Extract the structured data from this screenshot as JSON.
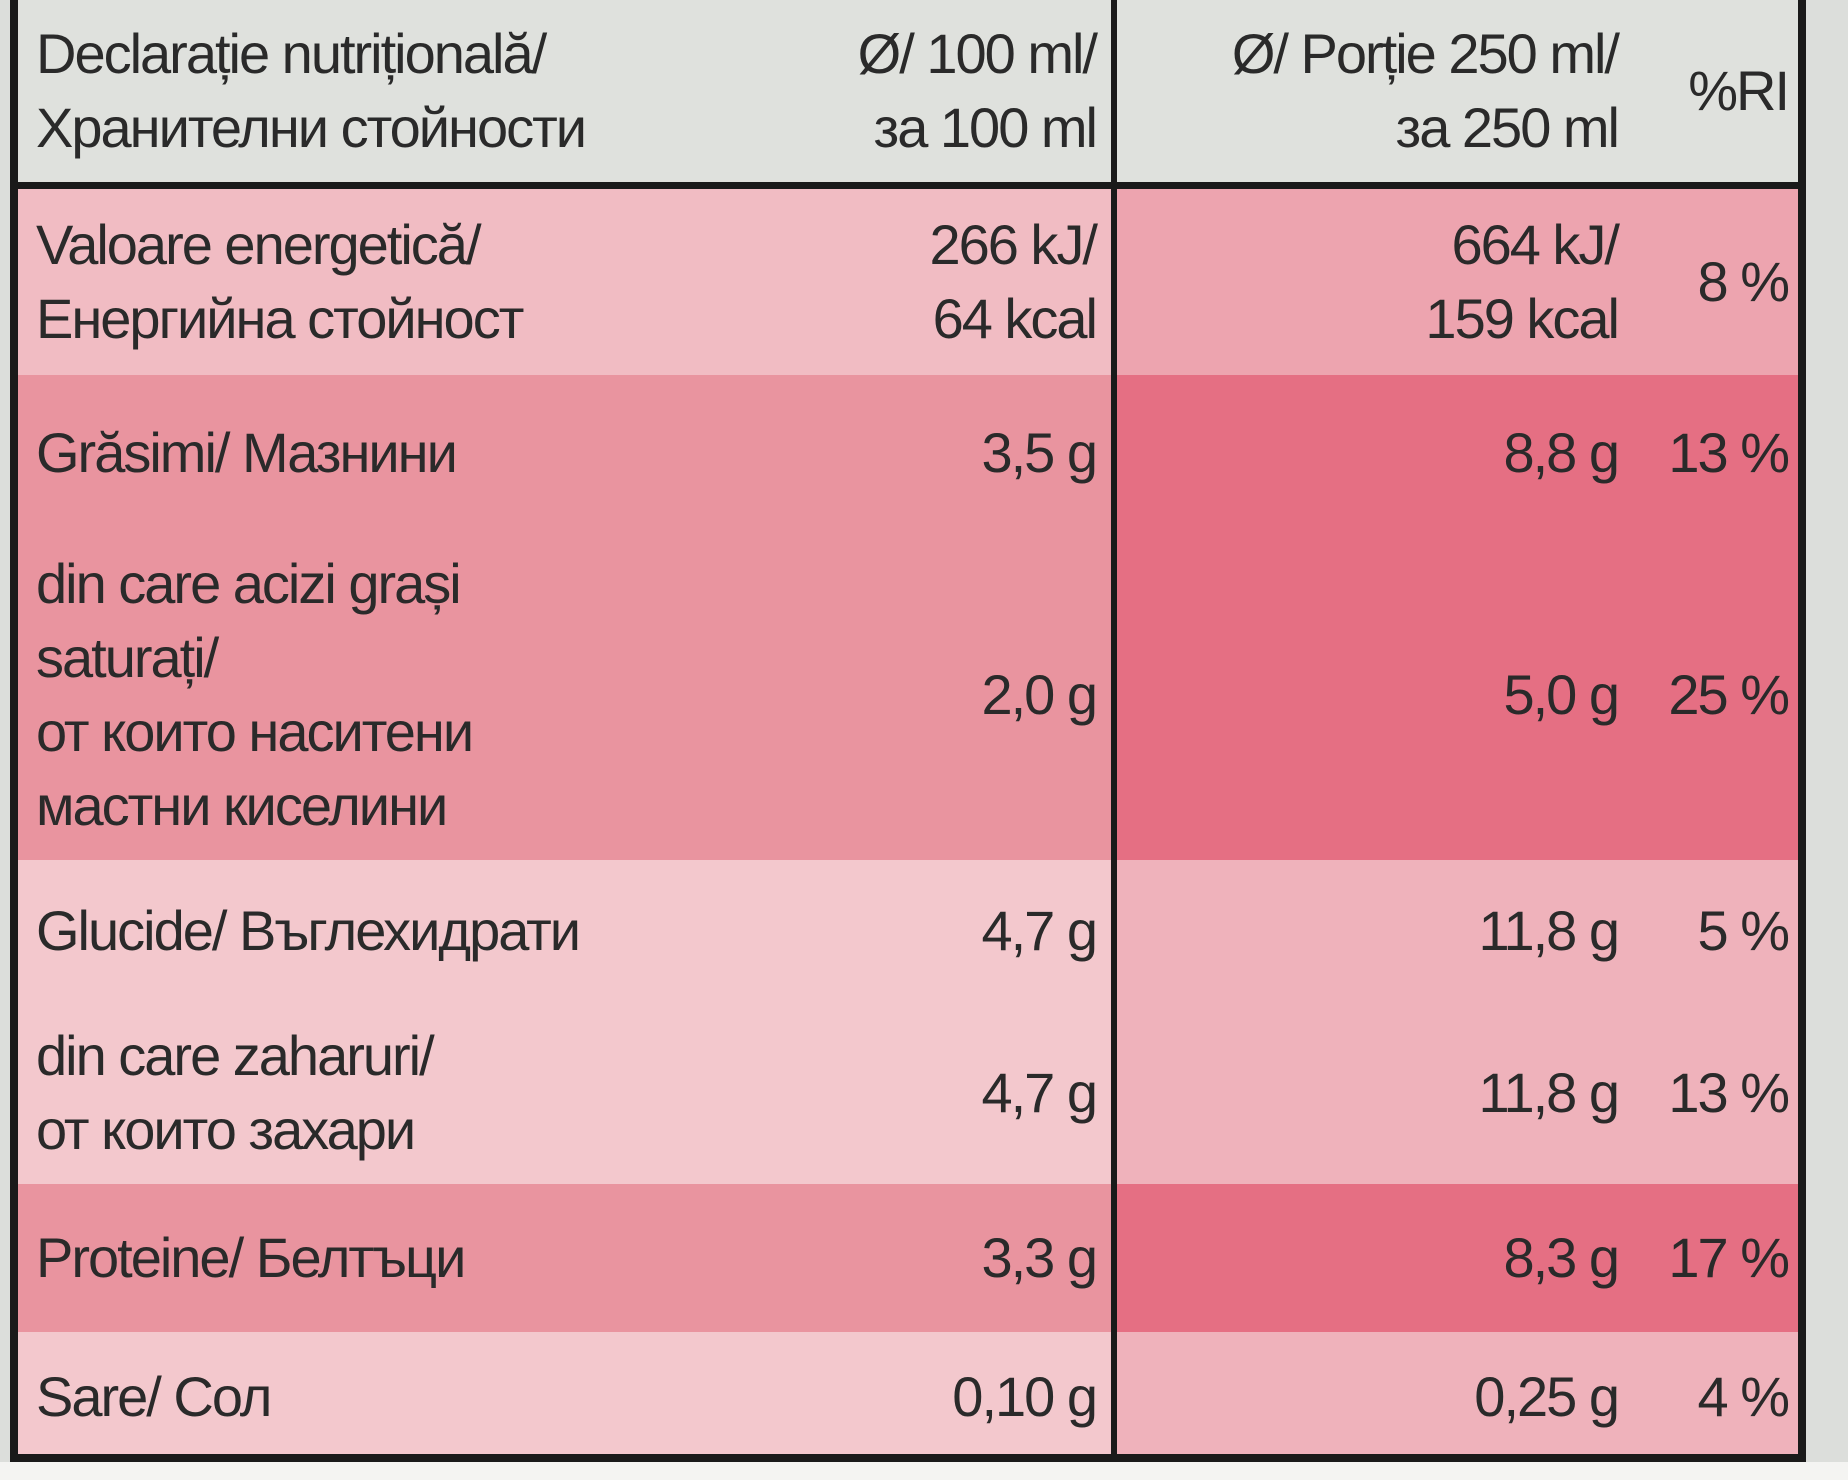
{
  "header": {
    "nutrients": [
      "Declarație nutrițională/",
      "Хранителни стойности"
    ],
    "per_100": [
      "Ø/ 100 ml/",
      "за 100 ml"
    ],
    "per_portion": [
      "Ø/ Porție 250 ml/",
      "за 250 ml"
    ],
    "ri": "%RI"
  },
  "rows": [
    {
      "label": [
        "Valoare energetică/",
        "Енергийна стойност"
      ],
      "per_100": [
        "266 kJ/",
        "64 kcal"
      ],
      "per_portion": [
        "664 kJ/",
        "159 kcal"
      ],
      "ri": "8 %"
    },
    {
      "label": [
        "Grăsimi/ Мазнини"
      ],
      "per_100": [
        "3,5 g"
      ],
      "per_portion": [
        "8,8 g"
      ],
      "ri": "13 %"
    },
    {
      "label": [
        "din care acizi grași",
        "saturați/",
        "от които наситени",
        "мастни киселини"
      ],
      "per_100": [
        "2,0 g"
      ],
      "per_portion": [
        "5,0 g"
      ],
      "ri": "25 %"
    },
    {
      "label": [
        "Glucide/ Въглехидрати"
      ],
      "per_100": [
        "4,7 g"
      ],
      "per_portion": [
        "11,8 g"
      ],
      "ri": "5 %"
    },
    {
      "label": [
        "din care zaharuri/",
        "от които захари"
      ],
      "per_100": [
        "4,7 g"
      ],
      "per_portion": [
        "11,8 g"
      ],
      "ri": "13 %"
    },
    {
      "label": [
        "Proteine/ Белтъци"
      ],
      "per_100": [
        "3,3 g"
      ],
      "per_portion": [
        "8,3 g"
      ],
      "ri": "17 %"
    },
    {
      "label": [
        "Sare/ Сол"
      ],
      "per_100": [
        "0,10 g"
      ],
      "per_portion": [
        "0,25 g"
      ],
      "ri": "4 %"
    }
  ]
}
